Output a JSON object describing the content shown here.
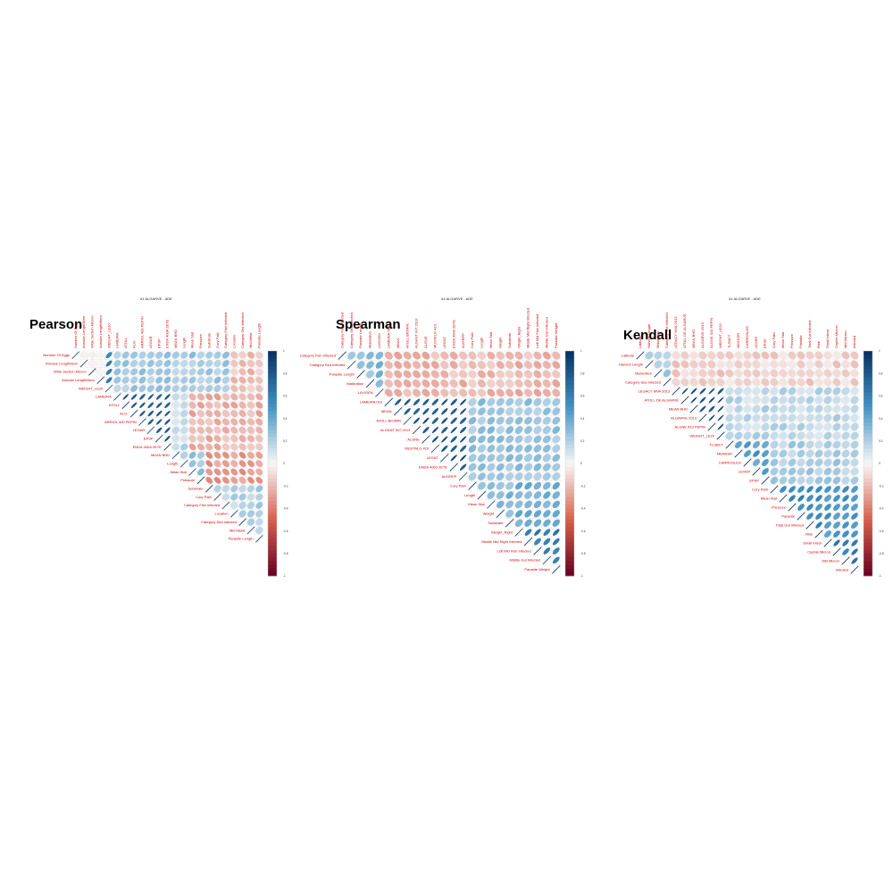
{
  "figure": {
    "background": "#ffffff",
    "colorscale": {
      "low": "#67001f",
      "mid": "#f7f7f7",
      "high": "#053061",
      "ticks": [
        "-1",
        "-0.8",
        "-0.6",
        "-0.4",
        "-0.2",
        "0",
        "0.2",
        "0.4",
        "0.6",
        "0.8",
        "1"
      ]
    },
    "label_color": "#d40000"
  },
  "chart_data": [
    {
      "type": "heatmap",
      "method": "corrplot-ellipse-upper",
      "title": "Pearson",
      "subtitle": "#1 ALGARVE - ADE",
      "row_labels": [
        "Number Of Eggs",
        "Annular LengthMorn",
        "Wide Section Micron",
        "Annular LengthMicro",
        "WEIGHT_LE20",
        "LAMEIRA",
        "ATOLL",
        "ALG-",
        "ARRIOL 400 PEPIN",
        "LEGAR",
        "EPSP",
        "ENDA 400A 2ETE",
        "MEAN BHD",
        "Length",
        "Mean Stat",
        "Pressure",
        "Substrate",
        "Cory Path",
        "Category Fish Infected",
        "Location",
        "Category Sea Infected",
        "Mid Metal",
        "Parasite Length"
      ],
      "col_labels": [
        "Number Of Eggs",
        "Annular LengthMorn",
        "Wide Section Micron",
        "Annular LengthMicro",
        "WEIGHT_LE20",
        "LAMEIRA",
        "ATOLL",
        "ALG-",
        "ARRIOL 400 PEPIN",
        "LEGAR",
        "EPSP",
        "ENDA 400A 2ETE",
        "MEAN BHD",
        "Length",
        "Mean Stat",
        "Pressure",
        "Substrate",
        "Cory Path",
        "Category Fish Infected",
        "Location",
        "Category Sea Infected",
        "Mid Metal",
        "Parasite Length"
      ],
      "blocks": [
        {
          "rows": [
            0,
            4
          ],
          "cols": [
            4,
            4
          ],
          "value": 0.55
        },
        {
          "rows": [
            0,
            4
          ],
          "cols": [
            5,
            18
          ],
          "value": 0.22
        },
        {
          "rows": [
            0,
            4
          ],
          "cols": [
            19,
            22
          ],
          "value": -0.18
        },
        {
          "rows": [
            5,
            11
          ],
          "cols": [
            5,
            11
          ],
          "value": 0.78
        },
        {
          "rows": [
            5,
            11
          ],
          "cols": [
            12,
            13
          ],
          "value": 0.15
        },
        {
          "rows": [
            5,
            11
          ],
          "cols": [
            14,
            22
          ],
          "value": -0.22
        },
        {
          "rows": [
            12,
            15
          ],
          "cols": [
            12,
            15
          ],
          "value": 0.25
        },
        {
          "rows": [
            12,
            15
          ],
          "cols": [
            16,
            22
          ],
          "value": -0.3
        },
        {
          "rows": [
            16,
            22
          ],
          "cols": [
            16,
            22
          ],
          "value": 0.18
        },
        {
          "rows": [
            19,
            20
          ],
          "cols": [
            21,
            22
          ],
          "value": -0.55
        }
      ]
    },
    {
      "type": "heatmap",
      "method": "corrplot-ellipse-upper",
      "title": "Spearman",
      "subtitle": "#1 ALGARVE - ADE",
      "row_labels": [
        "Category Fish Infected",
        "Category Sea Infected",
        "Parasite Length",
        "Maturation",
        "LAYIGEN",
        "LAMEIRA 010",
        "MEAN",
        "ATOLL BIOMIN",
        "ALGANT INT 2013",
        "ALGNE",
        "MUSTALG 410",
        "LEGAT",
        "ENDA 4000 2ETE",
        "AUGRPP",
        "Cory Path",
        "Length",
        "Mean Stat",
        "Weight",
        "Substrate",
        "Weight_Right",
        "Middle Mid Right Infected",
        "Left Mid Fish Infected",
        "Middle Gut Infected",
        "Parasite Weight"
      ],
      "col_labels": [
        "Category Fish Infected",
        "Category Sea Infected",
        "Parasite Length",
        "Maturation",
        "LAYIGEN",
        "LAMEIRA 010",
        "MEAN",
        "ATOLL BIOMIN",
        "ALGANT INT 2013",
        "ALGNE",
        "MUSTALG 410",
        "LEGAT",
        "ENDA 4000 2ETE",
        "AUGRPP",
        "Cory Path",
        "Length",
        "Mean Stat",
        "Weight",
        "Substrate",
        "Weight_Right",
        "Middle Mid Right Infected",
        "Left Mid Fish Infected",
        "Middle Gut Infected",
        "Parasite Weight"
      ],
      "blocks": [
        {
          "rows": [
            0,
            4
          ],
          "cols": [
            0,
            4
          ],
          "value": 0.3
        },
        {
          "rows": [
            0,
            4
          ],
          "cols": [
            5,
            23
          ],
          "value": -0.2
        },
        {
          "rows": [
            5,
            13
          ],
          "cols": [
            5,
            13
          ],
          "value": 0.8
        },
        {
          "rows": [
            5,
            13
          ],
          "cols": [
            14,
            23
          ],
          "value": 0.25
        },
        {
          "rows": [
            14,
            18
          ],
          "cols": [
            14,
            18
          ],
          "value": 0.3
        },
        {
          "rows": [
            14,
            18
          ],
          "cols": [
            19,
            23
          ],
          "value": 0.35
        },
        {
          "rows": [
            19,
            23
          ],
          "cols": [
            19,
            23
          ],
          "value": 0.6
        }
      ]
    },
    {
      "type": "heatmap",
      "method": "corrplot-ellipse-upper",
      "title": "Kendall",
      "subtitle": "#1 ALGARVE - ADE",
      "row_labels": [
        "Latitude",
        "Harvest Length",
        "Maturation",
        "Category Sea Infected",
        "LEGACY MVA 2013",
        "ATOLL DE ALGARVE",
        "MEAN BHD",
        "ALGARVE 2013",
        "ALGNE 410 PEPIN",
        "WEIGHT_LE20",
        "TLSBCT",
        "MEANSR",
        "CARROSLEG",
        "LEVER",
        "EPSP",
        "Cory Path",
        "Mean Stat",
        "Pressure",
        "Parasite",
        "Total Gut Infected",
        "Risk",
        "Small Intest",
        "Cepble Micron",
        "Mid Micron",
        "Infected"
      ],
      "col_labels": [
        "Latitude",
        "Harvest Length",
        "Maturation",
        "Category Sea Infected",
        "LEGACY MVA 2013",
        "ATOLL DE ALGARVE",
        "MEAN BHD",
        "ALGARVE 2013",
        "ALGNE 410 PEPIN",
        "WEIGHT_LE20",
        "TLSBCT",
        "MEANSR",
        "CARROSLEG",
        "LEVER",
        "EPSP",
        "Cory Path",
        "Mean Stat",
        "Pressure",
        "Parasite",
        "Total Gut Infected",
        "Risk",
        "Small Intest",
        "Cepble Micron",
        "Mid Micron",
        "Infected"
      ],
      "blocks": [
        {
          "rows": [
            0,
            3
          ],
          "cols": [
            0,
            3
          ],
          "value": 0.2
        },
        {
          "rows": [
            0,
            3
          ],
          "cols": [
            4,
            24
          ],
          "value": -0.12
        },
        {
          "rows": [
            4,
            9
          ],
          "cols": [
            4,
            9
          ],
          "value": 0.85
        },
        {
          "rows": [
            4,
            9
          ],
          "cols": [
            10,
            24
          ],
          "value": 0.15
        },
        {
          "rows": [
            10,
            14
          ],
          "cols": [
            10,
            14
          ],
          "value": 0.45
        },
        {
          "rows": [
            10,
            14
          ],
          "cols": [
            15,
            24
          ],
          "value": 0.2
        },
        {
          "rows": [
            15,
            20
          ],
          "cols": [
            15,
            20
          ],
          "value": 0.55
        },
        {
          "rows": [
            15,
            20
          ],
          "cols": [
            21,
            24
          ],
          "value": 0.5
        },
        {
          "rows": [
            21,
            24
          ],
          "cols": [
            21,
            24
          ],
          "value": 0.6
        }
      ]
    }
  ]
}
